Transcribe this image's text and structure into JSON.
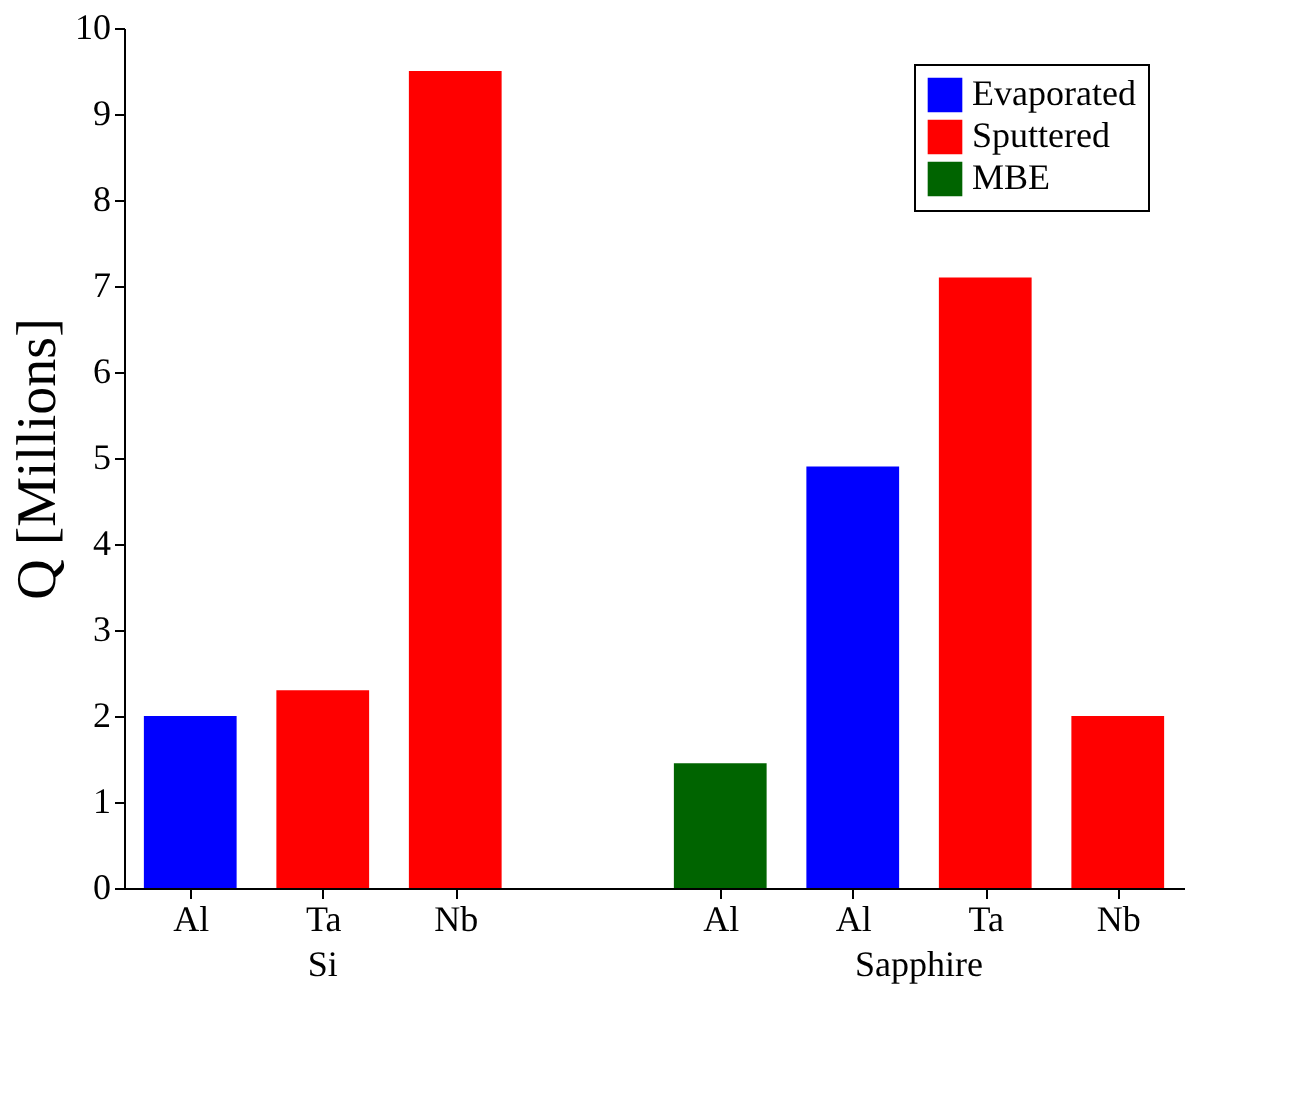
{
  "chart_data": {
    "type": "bar",
    "ylabel": "Q [Millions]",
    "categories": [
      "Al",
      "Ta",
      "Nb",
      null,
      "Al",
      "Al",
      "Ta",
      "Nb"
    ],
    "series": [
      {
        "name": "Evaporated",
        "color": "#0000ff",
        "values": [
          2.0,
          null,
          null,
          null,
          null,
          4.9,
          null,
          null
        ]
      },
      {
        "name": "Sputtered",
        "color": "#ff0000",
        "values": [
          null,
          2.3,
          9.5,
          null,
          null,
          null,
          7.1,
          2.0
        ]
      },
      {
        "name": "MBE",
        "color": "#006400",
        "values": [
          null,
          null,
          null,
          null,
          1.45,
          null,
          null,
          null
        ]
      }
    ],
    "ylim": [
      0,
      10
    ],
    "yticks": [
      0,
      1,
      2,
      3,
      4,
      5,
      6,
      7,
      8,
      9,
      10
    ],
    "annotations": [
      "Si",
      "Sapphire"
    ],
    "grid": false,
    "legend": "top right"
  }
}
